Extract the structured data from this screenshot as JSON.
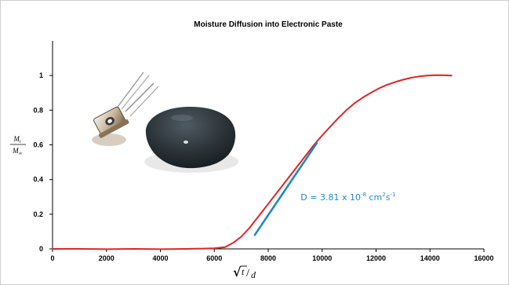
{
  "chart_data": {
    "type": "line",
    "title": "Moisture Diffusion into Electronic Paste",
    "xlabel": {
      "sqrt_symbol": "√",
      "numerator": "t",
      "separator": "/",
      "denominator": "d"
    },
    "ylabel": {
      "numerator": "M",
      "numerator_subscript": "t",
      "denominator": "M",
      "denominator_subscript": "∞"
    },
    "xlim": [
      0,
      16000
    ],
    "ylim": [
      0,
      1.2
    ],
    "x_ticks": [
      "0",
      "2000",
      "4000",
      "6000",
      "8000",
      "10000",
      "12000",
      "14000",
      "16000"
    ],
    "y_ticks": [
      "0",
      "0.2",
      "0.4",
      "0.6",
      "0.8",
      "1"
    ],
    "grid": false,
    "colors": {
      "measured": "#e02424",
      "fit": "#1e88c7"
    },
    "series": [
      {
        "role": "measured",
        "x": [
          0,
          1000,
          2000,
          3000,
          4000,
          5000,
          6000,
          6400,
          6700,
          7000,
          7300,
          7600,
          7900,
          8200,
          8500,
          8800,
          9100,
          9400,
          9700,
          10000,
          10300,
          10600,
          10900,
          11200,
          11500,
          11800,
          12100,
          12400,
          12700,
          13000,
          13300,
          13600,
          13900,
          14200,
          14500,
          14800
        ],
        "y": [
          0,
          0,
          -0.002,
          0,
          -0.002,
          0,
          0.003,
          0.01,
          0.035,
          0.07,
          0.12,
          0.18,
          0.24,
          0.3,
          0.36,
          0.42,
          0.48,
          0.54,
          0.6,
          0.655,
          0.705,
          0.755,
          0.8,
          0.84,
          0.872,
          0.9,
          0.925,
          0.946,
          0.962,
          0.976,
          0.987,
          0.995,
          1.0,
          1.002,
          1.001,
          1.0
        ]
      },
      {
        "role": "fit",
        "x": [
          7500,
          9800
        ],
        "y": [
          0.08,
          0.61
        ]
      }
    ],
    "annotation": {
      "prefix": "D = 3.81 x 10",
      "exponent": "-8",
      "unit_base": " cm",
      "unit_exp1": "2",
      "unit_s": "s",
      "unit_exp2": "-1",
      "x": 9200,
      "y": 0.28
    }
  },
  "images": {
    "transistor": "transistor-photo",
    "paste": "paste-blob-photo"
  }
}
